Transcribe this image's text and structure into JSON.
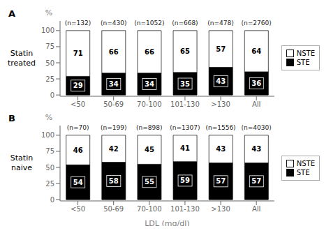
{
  "chart_data": [
    {
      "type": "bar",
      "stacked": true,
      "title": "A",
      "ylabel": "Statin\ntreated",
      "categories": [
        "<50",
        "50-69",
        "70-100",
        "101-130",
        ">130",
        "All"
      ],
      "series": [
        {
          "name": "STE",
          "color": "#000000",
          "values": [
            29,
            34,
            34,
            35,
            43,
            36
          ]
        },
        {
          "name": "NSTE",
          "color": "#ffffff",
          "values": [
            71,
            66,
            66,
            65,
            57,
            64
          ]
        }
      ],
      "annotations": [
        {
          "text": "%"
        },
        {
          "text": "(n=132)",
          "x": "<50",
          "y": 101.5
        },
        {
          "text": "(n=430)",
          "x": "50-69",
          "y": 101.5
        },
        {
          "text": "(n=1052)",
          "x": "70-100",
          "y": 101.5
        },
        {
          "text": "(n=668)",
          "x": "101-130",
          "y": 101.5
        },
        {
          "text": "(n=478)",
          "x": ">130",
          "y": 101.5
        },
        {
          "text": "(n=2760)",
          "x": "All",
          "y": 101.5
        }
      ],
      "ylim": [
        -2,
        115
      ],
      "yticks": [
        0,
        25,
        50,
        75,
        100
      ],
      "data_labels": true,
      "legend": "right",
      "grid": false
    },
    {
      "type": "bar",
      "stacked": true,
      "title": "B",
      "ylabel": "Statin\nnaive",
      "xlabel": "LDL (mg/dl)",
      "categories": [
        "<50",
        "50-69",
        "70-100",
        "101-130",
        ">130",
        "All"
      ],
      "series": [
        {
          "name": "STE",
          "color": "#000000",
          "values": [
            54,
            58,
            55,
            59,
            57,
            57
          ]
        },
        {
          "name": "NSTE",
          "color": "#ffffff",
          "values": [
            46,
            42,
            45,
            41,
            43,
            43
          ]
        }
      ],
      "annotations": [
        {
          "text": "%"
        },
        {
          "text": "(n=70)",
          "x": "<50",
          "y": 101.5
        },
        {
          "text": "(n=199)",
          "x": "50-69",
          "y": 101.5
        },
        {
          "text": "(n=898)",
          "x": "70-100",
          "y": 101.5
        },
        {
          "text": "(n=1307)",
          "x": "101-130",
          "y": 101.5
        },
        {
          "text": "(n=1556)",
          "x": ">130",
          "y": 101.5
        },
        {
          "text": "(n=4030)",
          "x": "All",
          "y": 101.5
        }
      ],
      "ylim": [
        -2,
        115
      ],
      "yticks": [
        0,
        25,
        50,
        75,
        100
      ],
      "data_labels": true,
      "legend": "right",
      "grid": false
    }
  ]
}
